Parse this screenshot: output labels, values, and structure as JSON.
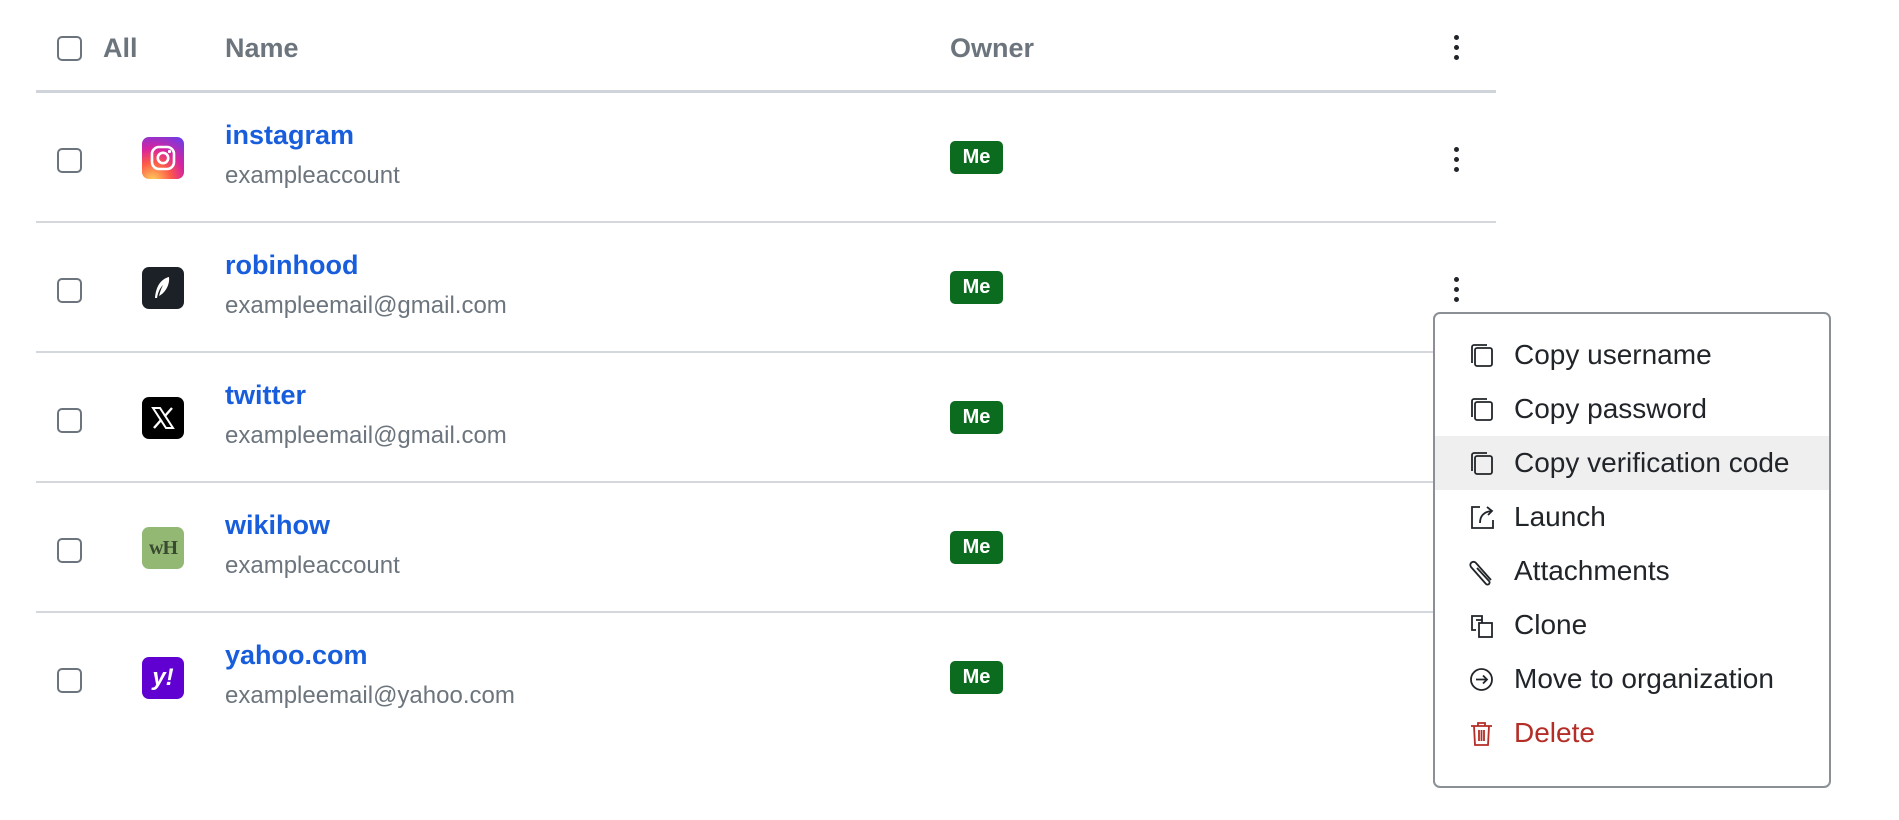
{
  "header": {
    "select_all_label": "All",
    "name_col": "Name",
    "owner_col": "Owner"
  },
  "rows": [
    {
      "name": "instagram",
      "username": "exampleaccount",
      "owner": "Me",
      "icon": "instagram-icon"
    },
    {
      "name": "robinhood",
      "username": "exampleemail@gmail.com",
      "owner": "Me",
      "icon": "robinhood-icon"
    },
    {
      "name": "twitter",
      "username": "exampleemail@gmail.com",
      "owner": "Me",
      "icon": "x-icon"
    },
    {
      "name": "wikihow",
      "username": "exampleaccount",
      "owner": "Me",
      "icon": "wikihow-icon",
      "icon_text": "wH"
    },
    {
      "name": "yahoo.com",
      "username": "exampleemail@yahoo.com",
      "owner": "Me",
      "icon": "yahoo-icon",
      "icon_text": "y!"
    }
  ],
  "menu": {
    "items": [
      {
        "label": "Copy username",
        "icon": "copy-icon"
      },
      {
        "label": "Copy password",
        "icon": "copy-icon"
      },
      {
        "label": "Copy verification code",
        "icon": "copy-icon",
        "highlighted": true
      },
      {
        "label": "Launch",
        "icon": "launch-icon"
      },
      {
        "label": "Attachments",
        "icon": "paperclip-icon"
      },
      {
        "label": "Clone",
        "icon": "clone-icon"
      },
      {
        "label": "Move to organization",
        "icon": "arrow-circle-right-icon"
      },
      {
        "label": "Delete",
        "icon": "trash-icon",
        "danger": true
      }
    ]
  },
  "colors": {
    "link": "#175ddc",
    "badge": "#0b6b1f",
    "danger": "#b42d26",
    "highlight": "#efefef"
  }
}
